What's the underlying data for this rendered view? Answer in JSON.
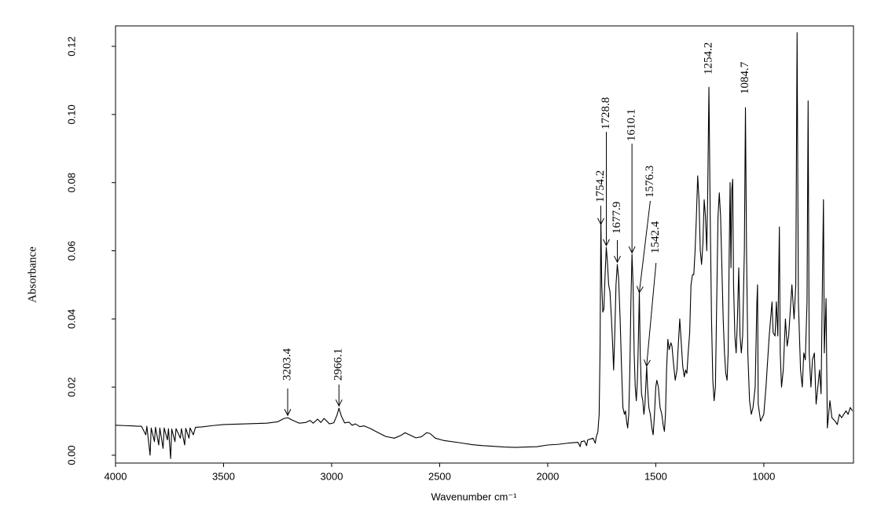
{
  "chart_data": {
    "type": "line",
    "xlabel": "Wavenumber cm⁻¹",
    "ylabel": "Absorbance",
    "color": "#000000",
    "xlim": [
      4000,
      585
    ],
    "ylim": [
      -0.0023,
      0.126
    ],
    "xticks": [
      4000,
      3500,
      3000,
      2500,
      2000,
      1500,
      1000
    ],
    "yticks": [
      {
        "value": 0,
        "label": "0.00"
      },
      {
        "value": 0.02,
        "label": "0.02"
      },
      {
        "value": 0.04,
        "label": "0.04"
      },
      {
        "value": 0.06,
        "label": "0.06"
      },
      {
        "value": 0.08,
        "label": "0.08"
      },
      {
        "value": 0.1,
        "label": "0.10"
      },
      {
        "value": 0.12,
        "label": "0.12"
      }
    ],
    "annotations": [
      {
        "label": "3203.4",
        "x": 3203.4
      },
      {
        "label": "2966.1",
        "x": 2966.1
      },
      {
        "label": "1754.2",
        "x": 1754.2
      },
      {
        "label": "1728.8",
        "x": 1728.8
      },
      {
        "label": "1677.9",
        "x": 1677.9
      },
      {
        "label": "1610.1",
        "x": 1610.1
      },
      {
        "label": "1576.3",
        "x": 1576.3
      },
      {
        "label": "1542.4",
        "x": 1542.4
      },
      {
        "label": "1254.2",
        "x": 1254.2
      },
      {
        "label": "1084.7",
        "x": 1084.7
      }
    ],
    "x": [
      4000,
      3960,
      3920,
      3900,
      3880,
      3860,
      3855,
      3840,
      3835,
      3820,
      3815,
      3800,
      3795,
      3780,
      3775,
      3760,
      3755,
      3745,
      3740,
      3725,
      3720,
      3700,
      3695,
      3680,
      3675,
      3660,
      3655,
      3640,
      3630,
      3600,
      3550,
      3500,
      3400,
      3300,
      3250,
      3220,
      3203,
      3185,
      3150,
      3120,
      3100,
      3085,
      3065,
      3050,
      3035,
      3010,
      2990,
      2975,
      2966,
      2955,
      2940,
      2920,
      2905,
      2890,
      2870,
      2850,
      2820,
      2790,
      2750,
      2710,
      2680,
      2660,
      2640,
      2610,
      2585,
      2560,
      2545,
      2520,
      2480,
      2400,
      2350,
      2300,
      2250,
      2200,
      2150,
      2100,
      2050,
      2000,
      1950,
      1900,
      1860,
      1850,
      1845,
      1830,
      1820,
      1815,
      1800,
      1790,
      1780,
      1775,
      1768,
      1762,
      1758,
      1754,
      1750,
      1745,
      1740,
      1735,
      1729,
      1724,
      1718,
      1712,
      1705,
      1700,
      1695,
      1690,
      1684,
      1678,
      1672,
      1665,
      1658,
      1652,
      1645,
      1640,
      1635,
      1630,
      1625,
      1620,
      1615,
      1610,
      1605,
      1600,
      1595,
      1590,
      1585,
      1580,
      1576,
      1572,
      1566,
      1560,
      1555,
      1550,
      1545,
      1542,
      1538,
      1532,
      1525,
      1518,
      1512,
      1506,
      1500,
      1495,
      1488,
      1480,
      1472,
      1466,
      1460,
      1455,
      1450,
      1444,
      1438,
      1430,
      1425,
      1418,
      1410,
      1402,
      1396,
      1389,
      1382,
      1375,
      1368,
      1362,
      1356,
      1350,
      1343,
      1337,
      1330,
      1324,
      1318,
      1312,
      1306,
      1300,
      1294,
      1288,
      1282,
      1276,
      1270,
      1264,
      1260,
      1254,
      1248,
      1242,
      1236,
      1230,
      1224,
      1218,
      1212,
      1206,
      1200,
      1194,
      1188,
      1182,
      1176,
      1170,
      1165,
      1160,
      1156,
      1152,
      1148,
      1144,
      1140,
      1134,
      1128,
      1122,
      1116,
      1110,
      1104,
      1098,
      1090,
      1085,
      1080,
      1074,
      1066,
      1058,
      1050,
      1040,
      1032,
      1029,
      1026,
      1015,
      1000,
      990,
      975,
      962,
      957,
      948,
      942,
      935,
      928,
      924,
      918,
      910,
      900,
      892,
      885,
      870,
      860,
      852,
      846,
      840,
      830,
      822,
      815,
      808,
      800,
      795,
      790,
      782,
      775,
      766,
      758,
      750,
      742,
      735,
      728,
      724,
      720,
      712,
      706,
      700,
      694,
      685,
      670,
      660,
      650,
      640,
      630,
      620,
      610,
      600,
      590
    ],
    "values": [
      0.0088,
      0.0087,
      0.0086,
      0.0085,
      0.0085,
      0.006,
      0.0085,
      0.0,
      0.008,
      0.004,
      0.0082,
      0.003,
      0.008,
      0.002,
      0.008,
      0.0045,
      0.0078,
      -0.001,
      0.0077,
      0.004,
      0.0078,
      0.005,
      0.0078,
      0.003,
      0.0079,
      0.005,
      0.008,
      0.006,
      0.0082,
      0.0083,
      0.0087,
      0.009,
      0.0092,
      0.0094,
      0.0098,
      0.0108,
      0.011,
      0.0104,
      0.0094,
      0.0096,
      0.0102,
      0.0094,
      0.0106,
      0.0096,
      0.0108,
      0.0092,
      0.0095,
      0.0118,
      0.0138,
      0.0115,
      0.0095,
      0.0097,
      0.0088,
      0.0092,
      0.0084,
      0.0086,
      0.0078,
      0.0068,
      0.0055,
      0.005,
      0.0058,
      0.0066,
      0.006,
      0.0051,
      0.0054,
      0.0066,
      0.0064,
      0.005,
      0.0043,
      0.0036,
      0.0031,
      0.0028,
      0.0026,
      0.0024,
      0.0023,
      0.0024,
      0.0025,
      0.003,
      0.0032,
      0.0036,
      0.0038,
      0.0025,
      0.004,
      0.0042,
      0.0028,
      0.0045,
      0.0048,
      0.005,
      0.0035,
      0.0055,
      0.0068,
      0.012,
      0.03,
      0.069,
      0.05,
      0.042,
      0.043,
      0.052,
      0.061,
      0.057,
      0.05,
      0.048,
      0.04,
      0.033,
      0.025,
      0.035,
      0.05,
      0.056,
      0.052,
      0.04,
      0.025,
      0.014,
      0.012,
      0.013,
      0.01,
      0.008,
      0.012,
      0.025,
      0.045,
      0.059,
      0.05,
      0.03,
      0.02,
      0.016,
      0.022,
      0.035,
      0.048,
      0.03,
      0.018,
      0.016,
      0.012,
      0.015,
      0.022,
      0.026,
      0.02,
      0.014,
      0.012,
      0.008,
      0.006,
      0.012,
      0.02,
      0.022,
      0.02,
      0.014,
      0.012,
      0.009,
      0.007,
      0.012,
      0.025,
      0.034,
      0.031,
      0.033,
      0.032,
      0.027,
      0.022,
      0.025,
      0.032,
      0.04,
      0.033,
      0.026,
      0.023,
      0.025,
      0.024,
      0.03,
      0.036,
      0.05,
      0.053,
      0.053,
      0.06,
      0.07,
      0.082,
      0.075,
      0.06,
      0.056,
      0.062,
      0.075,
      0.07,
      0.06,
      0.075,
      0.108,
      0.07,
      0.04,
      0.022,
      0.016,
      0.02,
      0.045,
      0.07,
      0.077,
      0.07,
      0.055,
      0.04,
      0.03,
      0.024,
      0.022,
      0.03,
      0.06,
      0.08,
      0.055,
      0.078,
      0.081,
      0.05,
      0.035,
      0.03,
      0.04,
      0.055,
      0.035,
      0.03,
      0.035,
      0.06,
      0.102,
      0.06,
      0.03,
      0.016,
      0.012,
      0.014,
      0.02,
      0.045,
      0.05,
      0.015,
      0.01,
      0.012,
      0.02,
      0.035,
      0.045,
      0.036,
      0.035,
      0.045,
      0.035,
      0.067,
      0.03,
      0.02,
      0.025,
      0.04,
      0.032,
      0.035,
      0.05,
      0.04,
      0.05,
      0.124,
      0.045,
      0.025,
      0.02,
      0.03,
      0.028,
      0.045,
      0.104,
      0.03,
      0.02,
      0.028,
      0.03,
      0.015,
      0.02,
      0.025,
      0.018,
      0.055,
      0.075,
      0.03,
      0.046,
      0.008,
      0.012,
      0.016,
      0.011,
      0.01,
      0.009,
      0.012,
      0.011,
      0.012,
      0.013,
      0.012,
      0.014,
      0.013
    ]
  }
}
